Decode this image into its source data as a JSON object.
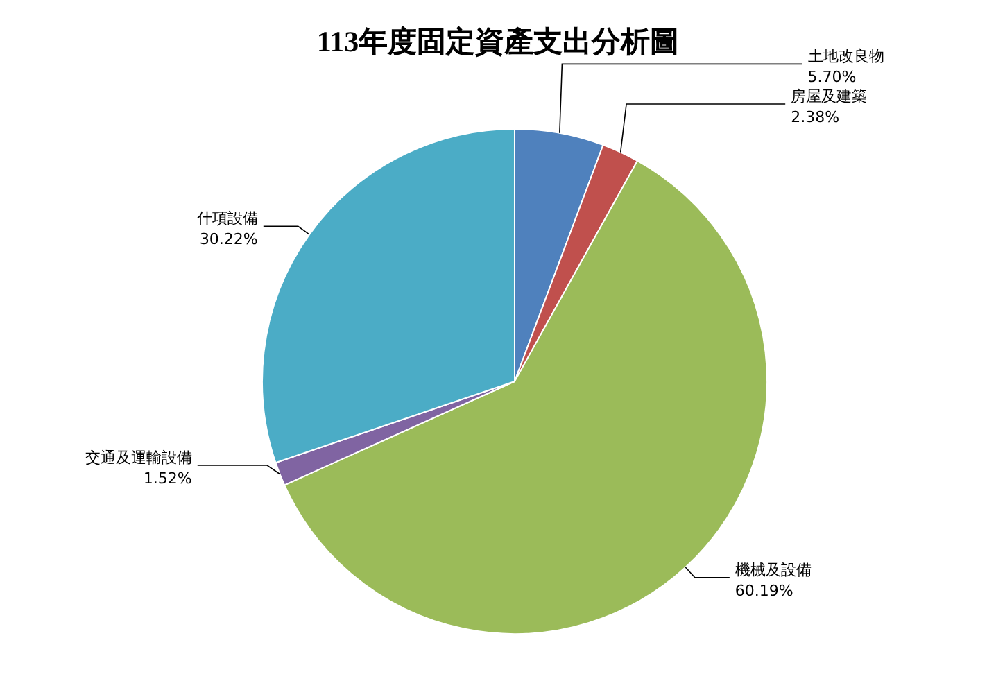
{
  "chart_data": {
    "type": "pie",
    "title": "113年度固定資產支出分析圖",
    "categories": [
      "土地改良物",
      "房屋及建築",
      "機械及設備",
      "交通及運輸設備",
      "什項設備"
    ],
    "values": [
      5.7,
      2.38,
      60.19,
      1.52,
      30.22
    ],
    "colors": [
      "#4f81bd",
      "#c0504d",
      "#9bbb59",
      "#8064a2",
      "#4bacc6"
    ],
    "value_labels": [
      "5.70%",
      "2.38%",
      "60.19%",
      "1.52%",
      "30.22%"
    ],
    "legend": false
  }
}
